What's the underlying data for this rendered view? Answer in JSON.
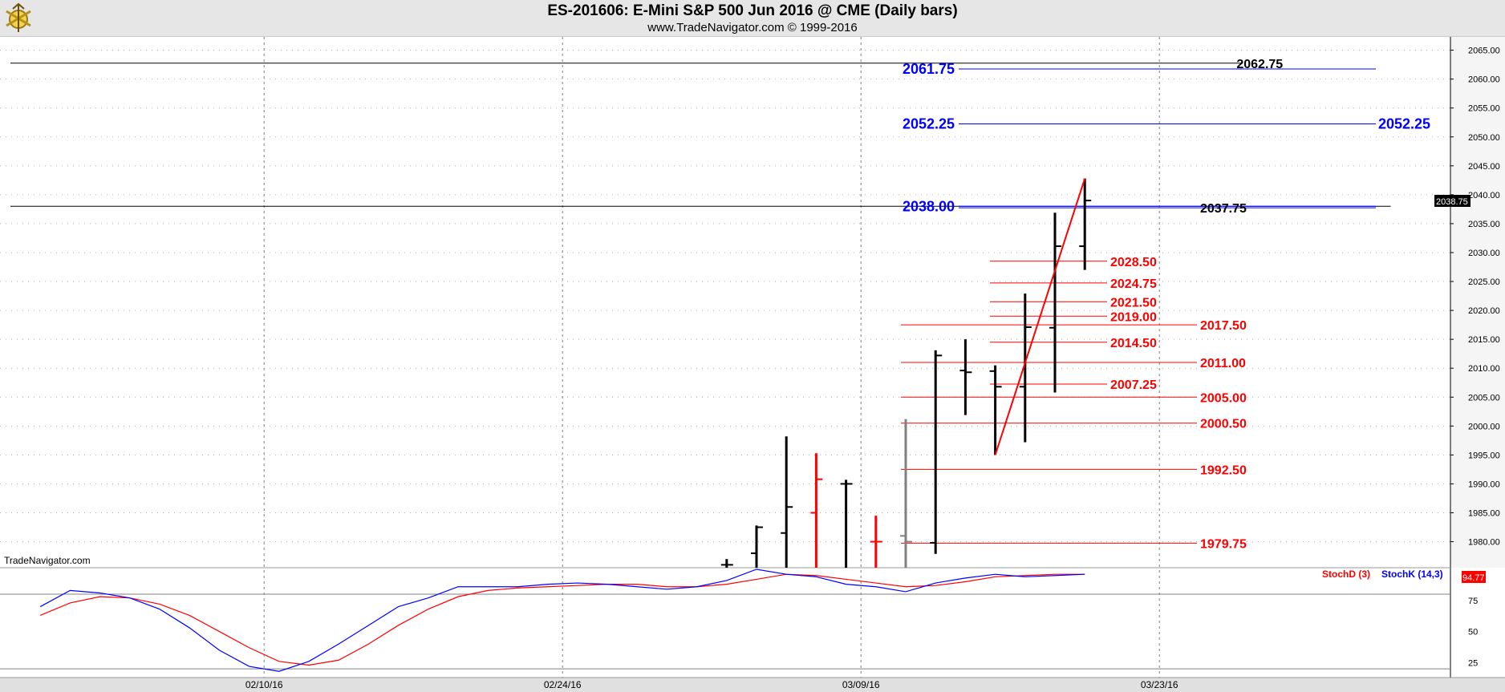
{
  "header": {
    "title": "ES-201606:  E-Mini S&P 500 Jun 2016 @ CME  (Daily bars)",
    "subtitle": "www.TradeNavigator.com © 1999-2016",
    "watermark": "TradeNavigator.com"
  },
  "chart_data": [
    {
      "type": "ohlc",
      "price_axis": {
        "ticks": [
          "1980.00",
          "1985.00",
          "1990.00",
          "1995.00",
          "2000.00",
          "2005.00",
          "2010.00",
          "2015.00",
          "2020.00",
          "2025.00",
          "2030.00",
          "2035.00",
          "2040.00",
          "2045.00",
          "2050.00",
          "2055.00",
          "2060.00",
          "2065.00"
        ],
        "ylim": [
          1975.5,
          2067.3
        ],
        "current_price": "2038.75"
      },
      "date_axis": {
        "ticks": [
          {
            "label": "02/10/16",
            "bar": 8.5
          },
          {
            "label": "02/24/16",
            "bar": 18.5
          },
          {
            "label": "03/09/16",
            "bar": 28.5
          },
          {
            "label": "03/23/16",
            "bar": 38.5
          }
        ]
      },
      "bars": [
        {
          "bar": 24,
          "open": 1976,
          "high": 1977,
          "low": 1975,
          "close": 1976,
          "color": "#000000"
        },
        {
          "bar": 25,
          "open": 1978,
          "high": 1982.8,
          "low": 1975,
          "close": 1982.5,
          "color": "#000000"
        },
        {
          "bar": 26,
          "open": 1981.5,
          "high": 1998.2,
          "low": 1975,
          "close": 1986,
          "color": "#000000"
        },
        {
          "bar": 27,
          "open": 1985,
          "high": 1995.3,
          "low": 1975,
          "close": 1990.8,
          "color": "#ff0000"
        },
        {
          "bar": 28,
          "open": 1990,
          "high": 1990.7,
          "low": 1975,
          "close": 1990,
          "color": "#000000"
        },
        {
          "bar": 29,
          "open": 1980,
          "high": 1984.5,
          "low": 1975,
          "close": 1980,
          "color": "#ff0000"
        },
        {
          "bar": 30,
          "open": 1981,
          "high": 2001.2,
          "low": 1975,
          "close": 1980,
          "color": "#808080"
        },
        {
          "bar": 31,
          "open": 1979.8,
          "high": 2013.1,
          "low": 1977.9,
          "close": 2012.2,
          "color": "#000000"
        },
        {
          "bar": 32,
          "open": 2009.6,
          "high": 2015,
          "low": 2001.9,
          "close": 2009.3,
          "color": "#000000"
        },
        {
          "bar": 33,
          "open": 2009.5,
          "high": 2010.5,
          "low": 1995,
          "close": 2006.8,
          "color": "#000000"
        },
        {
          "bar": 34,
          "open": 2006.8,
          "high": 2022.9,
          "low": 1997.2,
          "close": 2017.1,
          "color": "#000000"
        },
        {
          "bar": 35,
          "open": 2017,
          "high": 2036.9,
          "low": 2005.8,
          "close": 2031.1,
          "color": "#000000"
        },
        {
          "bar": 36,
          "open": 2031.1,
          "high": 2042.8,
          "low": 2027,
          "close": 2039,
          "color": "#000000"
        }
      ],
      "trendline": {
        "from": {
          "bar": 33,
          "price": 1995
        },
        "to": {
          "bar": 36,
          "price": 2042.8
        }
      },
      "horizontal_lines": [
        {
          "label": "2062.75",
          "price": 2062.75,
          "color": "#000000",
          "from_bar": 0,
          "to_bar": 41.3,
          "label_bar": 41.3,
          "weight": "bold"
        },
        {
          "label": "2038.00",
          "price": 2038.0,
          "color": "#000000",
          "from_bar": 0,
          "to_bar": 46.25,
          "label_bar": null,
          "weight": "normal"
        }
      ],
      "fib_levels": {
        "blue": [
          {
            "label": "2061.75",
            "price": 2061.75,
            "left_label": true,
            "right_label": false
          },
          {
            "label": "2052.25",
            "price": 2052.25,
            "left_label": true,
            "right_label": true
          },
          {
            "label": "2038.00",
            "price": 2038.0,
            "left_label": true,
            "right_label": false
          },
          {
            "label": "2037.75",
            "price": 2037.75,
            "left_label": false,
            "right_label": false
          }
        ],
        "red_long": [
          "2017.50",
          "2011.00",
          "2005.00",
          "2000.50",
          "1992.50",
          "1979.75"
        ],
        "red_short": [
          "2028.50",
          "2024.75",
          "2021.50",
          "2019.00",
          "2014.50",
          "2007.25"
        ],
        "black_short": [
          {
            "label": "2037.75",
            "price": 2037.75
          }
        ]
      }
    },
    {
      "type": "line",
      "indicator": "Stochastic",
      "series": [
        {
          "name": "StochD (3)",
          "color": "#ff0000",
          "bars": [
            1,
            2,
            3,
            4,
            5,
            6,
            7,
            8,
            9,
            10,
            11,
            12,
            13,
            14,
            15,
            16,
            17,
            18,
            19,
            20,
            21,
            22,
            23,
            24,
            25,
            26,
            27,
            28,
            29,
            30,
            31,
            32,
            33,
            34,
            35,
            36
          ],
          "values": [
            63,
            73,
            78,
            77,
            72,
            63,
            50,
            37,
            26,
            23,
            27,
            40,
            55,
            68,
            78,
            83,
            85,
            86,
            87,
            88,
            88,
            86,
            86,
            88,
            92,
            96,
            95,
            92,
            89,
            86,
            87,
            90,
            94,
            95,
            96,
            96
          ]
        },
        {
          "name": "StochK (14,3)",
          "color": "#0000ff",
          "bars": [
            1,
            2,
            3,
            4,
            5,
            6,
            7,
            8,
            9,
            10,
            11,
            12,
            13,
            14,
            15,
            16,
            17,
            18,
            19,
            20,
            21,
            22,
            23,
            24,
            25,
            26,
            27,
            28,
            29,
            30,
            31,
            32,
            33,
            34,
            35,
            36
          ],
          "values": [
            70,
            83,
            81,
            77,
            68,
            53,
            35,
            22,
            18,
            26,
            40,
            55,
            70,
            77,
            86,
            86,
            86,
            88,
            89,
            88,
            86,
            84,
            86,
            91,
            100,
            96,
            94,
            88,
            86,
            82,
            89,
            93,
            96,
            94,
            95,
            96
          ]
        }
      ],
      "axis_ticks": [
        "25",
        "50",
        "75"
      ],
      "ylim": [
        13,
        100
      ],
      "current_value": "94.77"
    }
  ]
}
